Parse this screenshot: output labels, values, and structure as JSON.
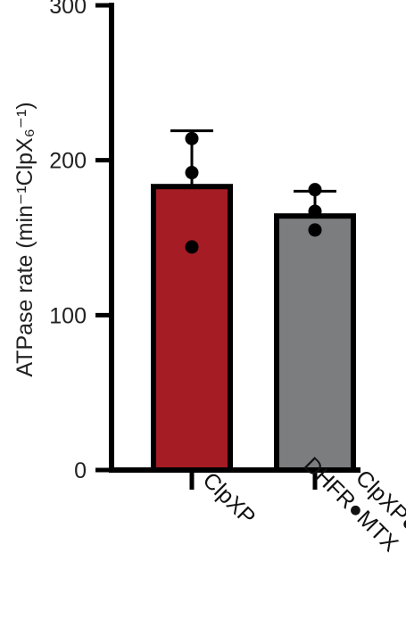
{
  "chart_data": {
    "type": "bar",
    "title": "",
    "xlabel": "",
    "ylabel": "ATPase rate (min⁻¹ClpX₆⁻¹)",
    "ylim": [
      0,
      300
    ],
    "yticks": [
      "0",
      "100",
      "200",
      "300"
    ],
    "grid": false,
    "categories": [
      {
        "lines": [
          "ClpXP"
        ]
      },
      {
        "lines": [
          "ClpXP●",
          "DHFR●MTX"
        ]
      }
    ],
    "values": [
      183,
      164
    ],
    "error_upper": [
      219,
      180
    ],
    "points": [
      [
        214,
        192,
        144
      ],
      [
        181,
        167,
        155
      ]
    ],
    "colors": {
      "bars": [
        "#a51c24",
        "#7b7d7e"
      ],
      "stroke": "#000000"
    }
  }
}
